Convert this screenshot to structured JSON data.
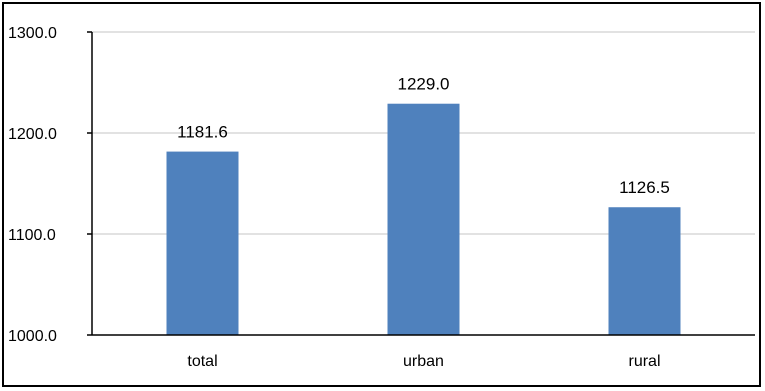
{
  "chart_data": {
    "type": "bar",
    "title": "",
    "xlabel": "",
    "ylabel": "",
    "categories": [
      "total",
      "urban",
      "rural"
    ],
    "values": [
      1181.6,
      1229.0,
      1126.5
    ],
    "data_labels": [
      "1181.6",
      "1229.0",
      "1126.5"
    ],
    "ylim": [
      1000,
      1300
    ],
    "yticks": [
      1000,
      1100,
      1200,
      1300
    ],
    "ytick_labels": [
      "1000.0",
      "1100.0",
      "1200.0",
      "1300.0"
    ],
    "grid": true,
    "legend": "none",
    "bar_color": "#4F81BD",
    "grid_color": "#D9D9D9"
  }
}
